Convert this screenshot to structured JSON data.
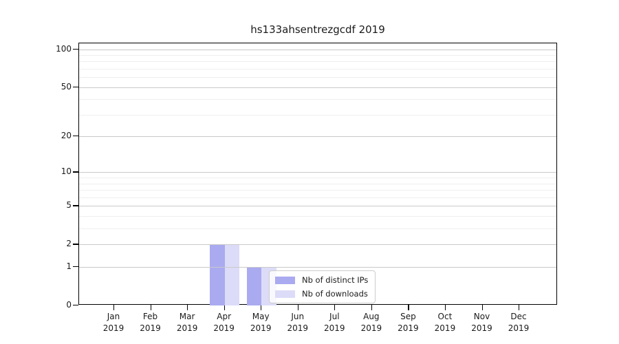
{
  "title": "hs133ahsentrezgcdf 2019",
  "legend": {
    "items": [
      {
        "label": "Nb of distinct IPs",
        "color": "#aaaaf0"
      },
      {
        "label": "Nb of downloads",
        "color": "#dcdcf8"
      }
    ]
  },
  "chart_data": {
    "type": "bar",
    "title": "hs133ahsentrezgcdf 2019",
    "categories": [
      "Jan 2019",
      "Feb 2019",
      "Mar 2019",
      "Apr 2019",
      "May 2019",
      "Jun 2019",
      "Jul 2019",
      "Aug 2019",
      "Sep 2019",
      "Oct 2019",
      "Nov 2019",
      "Dec 2019"
    ],
    "x_tick_lines": {
      "months": [
        "Jan",
        "Feb",
        "Mar",
        "Apr",
        "May",
        "Jun",
        "Jul",
        "Aug",
        "Sep",
        "Oct",
        "Nov",
        "Dec"
      ],
      "year": "2019"
    },
    "series": [
      {
        "name": "Nb of distinct IPs",
        "color": "#aaaaf0",
        "values": [
          0,
          0,
          0,
          2,
          1,
          0,
          0,
          0,
          0,
          0,
          0,
          0
        ]
      },
      {
        "name": "Nb of downloads",
        "color": "#dcdcf8",
        "values": [
          0,
          0,
          0,
          2,
          1,
          0,
          0,
          0,
          0,
          0,
          0,
          0
        ]
      }
    ],
    "y_scale": "log1p",
    "y_ticks": [
      0,
      1,
      2,
      5,
      10,
      20,
      50,
      100
    ],
    "y_minor_gridlines": [
      3,
      4,
      6,
      7,
      8,
      9,
      30,
      40,
      60,
      70,
      80,
      90
    ],
    "ylim": [
      0,
      110
    ],
    "grid": true,
    "grid_on_top_of_bars": true,
    "legend_position": "inside lower-center",
    "colors": {
      "major_grid": "#c9c9c9",
      "minor_grid": "#efefef",
      "axis": "#000000",
      "text": "#1a1a1a",
      "background": "#ffffff"
    }
  }
}
